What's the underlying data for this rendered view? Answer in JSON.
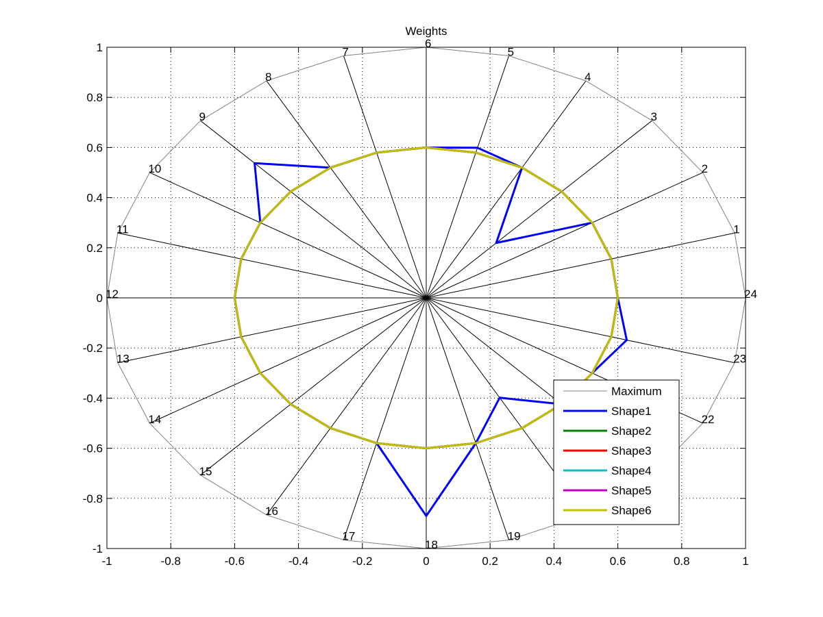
{
  "chart_data": {
    "type": "radar",
    "title": "Weights",
    "xlim": [
      -1,
      1
    ],
    "ylim": [
      -1,
      1
    ],
    "xticks": [
      -1,
      -0.8,
      -0.6,
      -0.4,
      -0.2,
      0,
      0.2,
      0.4,
      0.6,
      0.8,
      1
    ],
    "yticks": [
      -1,
      -0.8,
      -0.6,
      -0.4,
      -0.2,
      0,
      0.2,
      0.4,
      0.6,
      0.8,
      1
    ],
    "xtick_labels": [
      "-1",
      "-0.8",
      "-0.6",
      "-0.4",
      "-0.2",
      "0",
      "0.2",
      "0.4",
      "0.6",
      "0.8",
      "1"
    ],
    "ytick_labels": [
      "-1",
      "-0.8",
      "-0.6",
      "-0.4",
      "-0.2",
      "0",
      "0.2",
      "0.4",
      "0.6",
      "0.8",
      "1"
    ],
    "grid": true,
    "legend_position": "bottom-right",
    "spoke_labels": [
      "1",
      "2",
      "3",
      "4",
      "5",
      "6",
      "7",
      "8",
      "9",
      "10",
      "11",
      "12",
      "13",
      "14",
      "15",
      "16",
      "17",
      "18",
      "19",
      "20",
      "21",
      "22",
      "23",
      "24"
    ],
    "spoke_angles_deg": [
      15,
      30,
      45,
      60,
      75,
      90,
      105,
      120,
      135,
      150,
      165,
      180,
      195,
      210,
      225,
      240,
      255,
      270,
      285,
      300,
      315,
      330,
      345,
      360
    ],
    "series": [
      {
        "name": "Maximum",
        "color": "#808080",
        "width": 1,
        "values": [
          1,
          1,
          1,
          1,
          1,
          1,
          1,
          1,
          1,
          1,
          1,
          1,
          1,
          1,
          1,
          1,
          1,
          1,
          1,
          1,
          1,
          1,
          1,
          1
        ]
      },
      {
        "name": "Shape1",
        "color": "#0000ff",
        "width": 3,
        "values": [
          0.6,
          0.6,
          0.31,
          0.6,
          0.62,
          0.6,
          0.6,
          0.6,
          0.76,
          0.6,
          0.6,
          0.6,
          0.6,
          0.6,
          0.6,
          0.6,
          0.6,
          0.87,
          0.6,
          0.46,
          0.6,
          0.6,
          0.65,
          0.6
        ]
      },
      {
        "name": "Shape2",
        "color": "#008000",
        "width": 3,
        "values": [
          0.6,
          0.6,
          0.6,
          0.6,
          0.6,
          0.6,
          0.6,
          0.6,
          0.6,
          0.6,
          0.6,
          0.6,
          0.6,
          0.6,
          0.6,
          0.6,
          0.6,
          0.6,
          0.6,
          0.6,
          0.6,
          0.6,
          0.6,
          0.6
        ]
      },
      {
        "name": "Shape3",
        "color": "#ff0000",
        "width": 3,
        "values": [
          0.6,
          0.6,
          0.6,
          0.6,
          0.6,
          0.6,
          0.6,
          0.6,
          0.6,
          0.6,
          0.6,
          0.6,
          0.6,
          0.6,
          0.6,
          0.6,
          0.6,
          0.6,
          0.6,
          0.6,
          0.6,
          0.6,
          0.6,
          0.6
        ]
      },
      {
        "name": "Shape4",
        "color": "#00bfbf",
        "width": 3,
        "values": [
          0.6,
          0.6,
          0.6,
          0.6,
          0.6,
          0.6,
          0.6,
          0.6,
          0.6,
          0.6,
          0.6,
          0.6,
          0.6,
          0.6,
          0.6,
          0.6,
          0.6,
          0.6,
          0.6,
          0.6,
          0.6,
          0.6,
          0.6,
          0.6
        ]
      },
      {
        "name": "Shape5",
        "color": "#bf00bf",
        "width": 3,
        "values": [
          0.6,
          0.6,
          0.6,
          0.6,
          0.6,
          0.6,
          0.6,
          0.6,
          0.6,
          0.6,
          0.6,
          0.6,
          0.6,
          0.6,
          0.6,
          0.6,
          0.6,
          0.6,
          0.6,
          0.6,
          0.6,
          0.6,
          0.6,
          0.6
        ]
      },
      {
        "name": "Shape6",
        "color": "#bfbf00",
        "width": 3,
        "values": [
          0.6,
          0.6,
          0.6,
          0.6,
          0.6,
          0.6,
          0.6,
          0.6,
          0.6,
          0.6,
          0.6,
          0.6,
          0.6,
          0.6,
          0.6,
          0.6,
          0.6,
          0.6,
          0.6,
          0.6,
          0.6,
          0.6,
          0.6,
          0.6
        ]
      }
    ]
  }
}
